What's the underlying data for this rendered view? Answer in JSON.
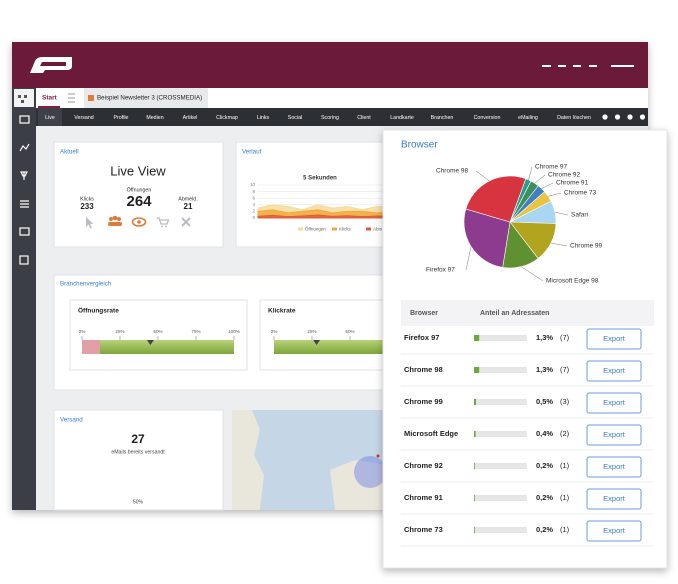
{
  "tabs": [
    "Start",
    "Beispiel Newsletter 3 (CROSSMEDIA)"
  ],
  "nav": [
    "Live",
    "Versand",
    "Profile",
    "Medien",
    "Artikel",
    "Clickmap",
    "Links",
    "Social",
    "Scoring",
    "Client",
    "Landkarte",
    "Branchen",
    "Conversion",
    "eMailing",
    "Daten löschen"
  ],
  "aktuell": {
    "title": "Aktuell",
    "heading": "Live View",
    "stats": [
      {
        "label": "Klicks",
        "value": 233
      },
      {
        "label": "Öffnungen",
        "value": 264
      },
      {
        "label": "Abmeld.",
        "value": 21
      }
    ]
  },
  "verlauf": {
    "title": "Verlauf",
    "chart": {
      "type": "area",
      "title": "5 Sekunden",
      "ylim": [
        0,
        10
      ],
      "yticks": [
        0,
        2,
        4,
        6,
        8,
        10
      ],
      "series": [
        {
          "name": "Öffnungen",
          "color": "#f3dc9a",
          "values": [
            3,
            4,
            3.5,
            2.5,
            4,
            3,
            3.5,
            2.5,
            3.5,
            3
          ]
        },
        {
          "name": "Klicks",
          "color": "#f2a93b",
          "values": [
            2,
            2.5,
            1.5,
            2,
            2.5,
            1.5,
            2,
            2,
            1.5,
            2
          ]
        },
        {
          "name": "Abmeld",
          "color": "#e05a3a",
          "values": [
            0.5,
            0.8,
            0.4,
            0.6,
            0.9,
            0.5,
            0.7,
            0.4,
            0.6,
            0.5
          ]
        }
      ]
    }
  },
  "branchenvergleich": {
    "title": "Branchenvergleich",
    "gauges": [
      {
        "title": "Öffnungsrate",
        "value": 45,
        "ticks": [
          {
            "value": 0,
            "label": "0%"
          },
          {
            "value": 25,
            "label": "25%"
          },
          {
            "value": 50,
            "label": "50%"
          },
          {
            "value": 75,
            "label": "75%"
          },
          {
            "value": 100,
            "label": "100%"
          }
        ]
      },
      {
        "title": "Klickrate",
        "value": 28,
        "ticks": [
          {
            "value": 0,
            "label": "0%"
          },
          {
            "value": 25,
            "label": "25%"
          },
          {
            "value": 50,
            "label": "50%"
          },
          {
            "value": 75,
            "label": "75%"
          },
          {
            "value": 100,
            "label": "100%"
          }
        ]
      }
    ]
  },
  "versand": {
    "title": "Versand",
    "count": 27,
    "caption": "eMails bereits versandt",
    "progress_label": "50%"
  },
  "browser": {
    "title": "Browser",
    "chart": {
      "type": "pie",
      "categories": [
        "Chrome 97",
        "Chrome 92",
        "Chrome 91",
        "Chrome 73",
        "Safari",
        "Chrome 99",
        "Microsoft Edge 98",
        "Firefox 97",
        "Chrome 98"
      ],
      "values": [
        2,
        3,
        3,
        4,
        8,
        14,
        13,
        27,
        26
      ],
      "colors": [
        "#2a9d8f",
        "#3f8f5a",
        "#3f7fc4",
        "#e8c440",
        "#a9d6f3",
        "#b3a41f",
        "#5f9131",
        "#8c3b8e",
        "#d8343f"
      ]
    },
    "table": {
      "columns": [
        "Browser",
        "Anteil an Adressaten"
      ],
      "rows": [
        {
          "browser": "Firefox 97",
          "share": 1.3,
          "share_label": "1,3%",
          "count_label": "(7)",
          "action": "Export"
        },
        {
          "browser": "Chrome 98",
          "share": 1.3,
          "share_label": "1,3%",
          "count_label": "(7)",
          "action": "Export"
        },
        {
          "browser": "Chrome 99",
          "share": 0.5,
          "share_label": "0,5%",
          "count_label": "(3)",
          "action": "Export"
        },
        {
          "browser": "Microsoft Edge",
          "share": 0.4,
          "share_label": "0,4%",
          "count_label": "(2)",
          "action": "Export"
        },
        {
          "browser": "Chrome 92",
          "share": 0.2,
          "share_label": "0,2%",
          "count_label": "(1)",
          "action": "Export"
        },
        {
          "browser": "Chrome 91",
          "share": 0.2,
          "share_label": "0,2%",
          "count_label": "(1)",
          "action": "Export"
        },
        {
          "browser": "Chrome 73",
          "share": 0.2,
          "share_label": "0,2%",
          "count_label": "(1)",
          "action": "Export"
        }
      ]
    }
  }
}
